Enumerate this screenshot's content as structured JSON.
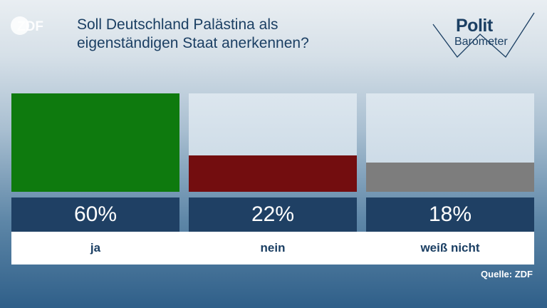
{
  "logo_text": "ZDF",
  "title": "Soll Deutschland Palästina als eigenständigen Staat anerkennen?",
  "badge": {
    "word1": "Polit",
    "word2": "Barometer"
  },
  "chart_data": {
    "type": "bar",
    "categories": [
      "ja",
      "nein",
      "weiß nicht"
    ],
    "values": [
      60,
      22,
      18
    ],
    "value_labels": [
      "60%",
      "22%",
      "18%"
    ],
    "colors": [
      "#0e7a0e",
      "#730d0f",
      "#7d7d7d"
    ],
    "ylim": [
      0,
      60
    ],
    "title": "Soll Deutschland Palästina als eigenständigen Staat anerkennen?"
  },
  "source": "Quelle: ZDF"
}
